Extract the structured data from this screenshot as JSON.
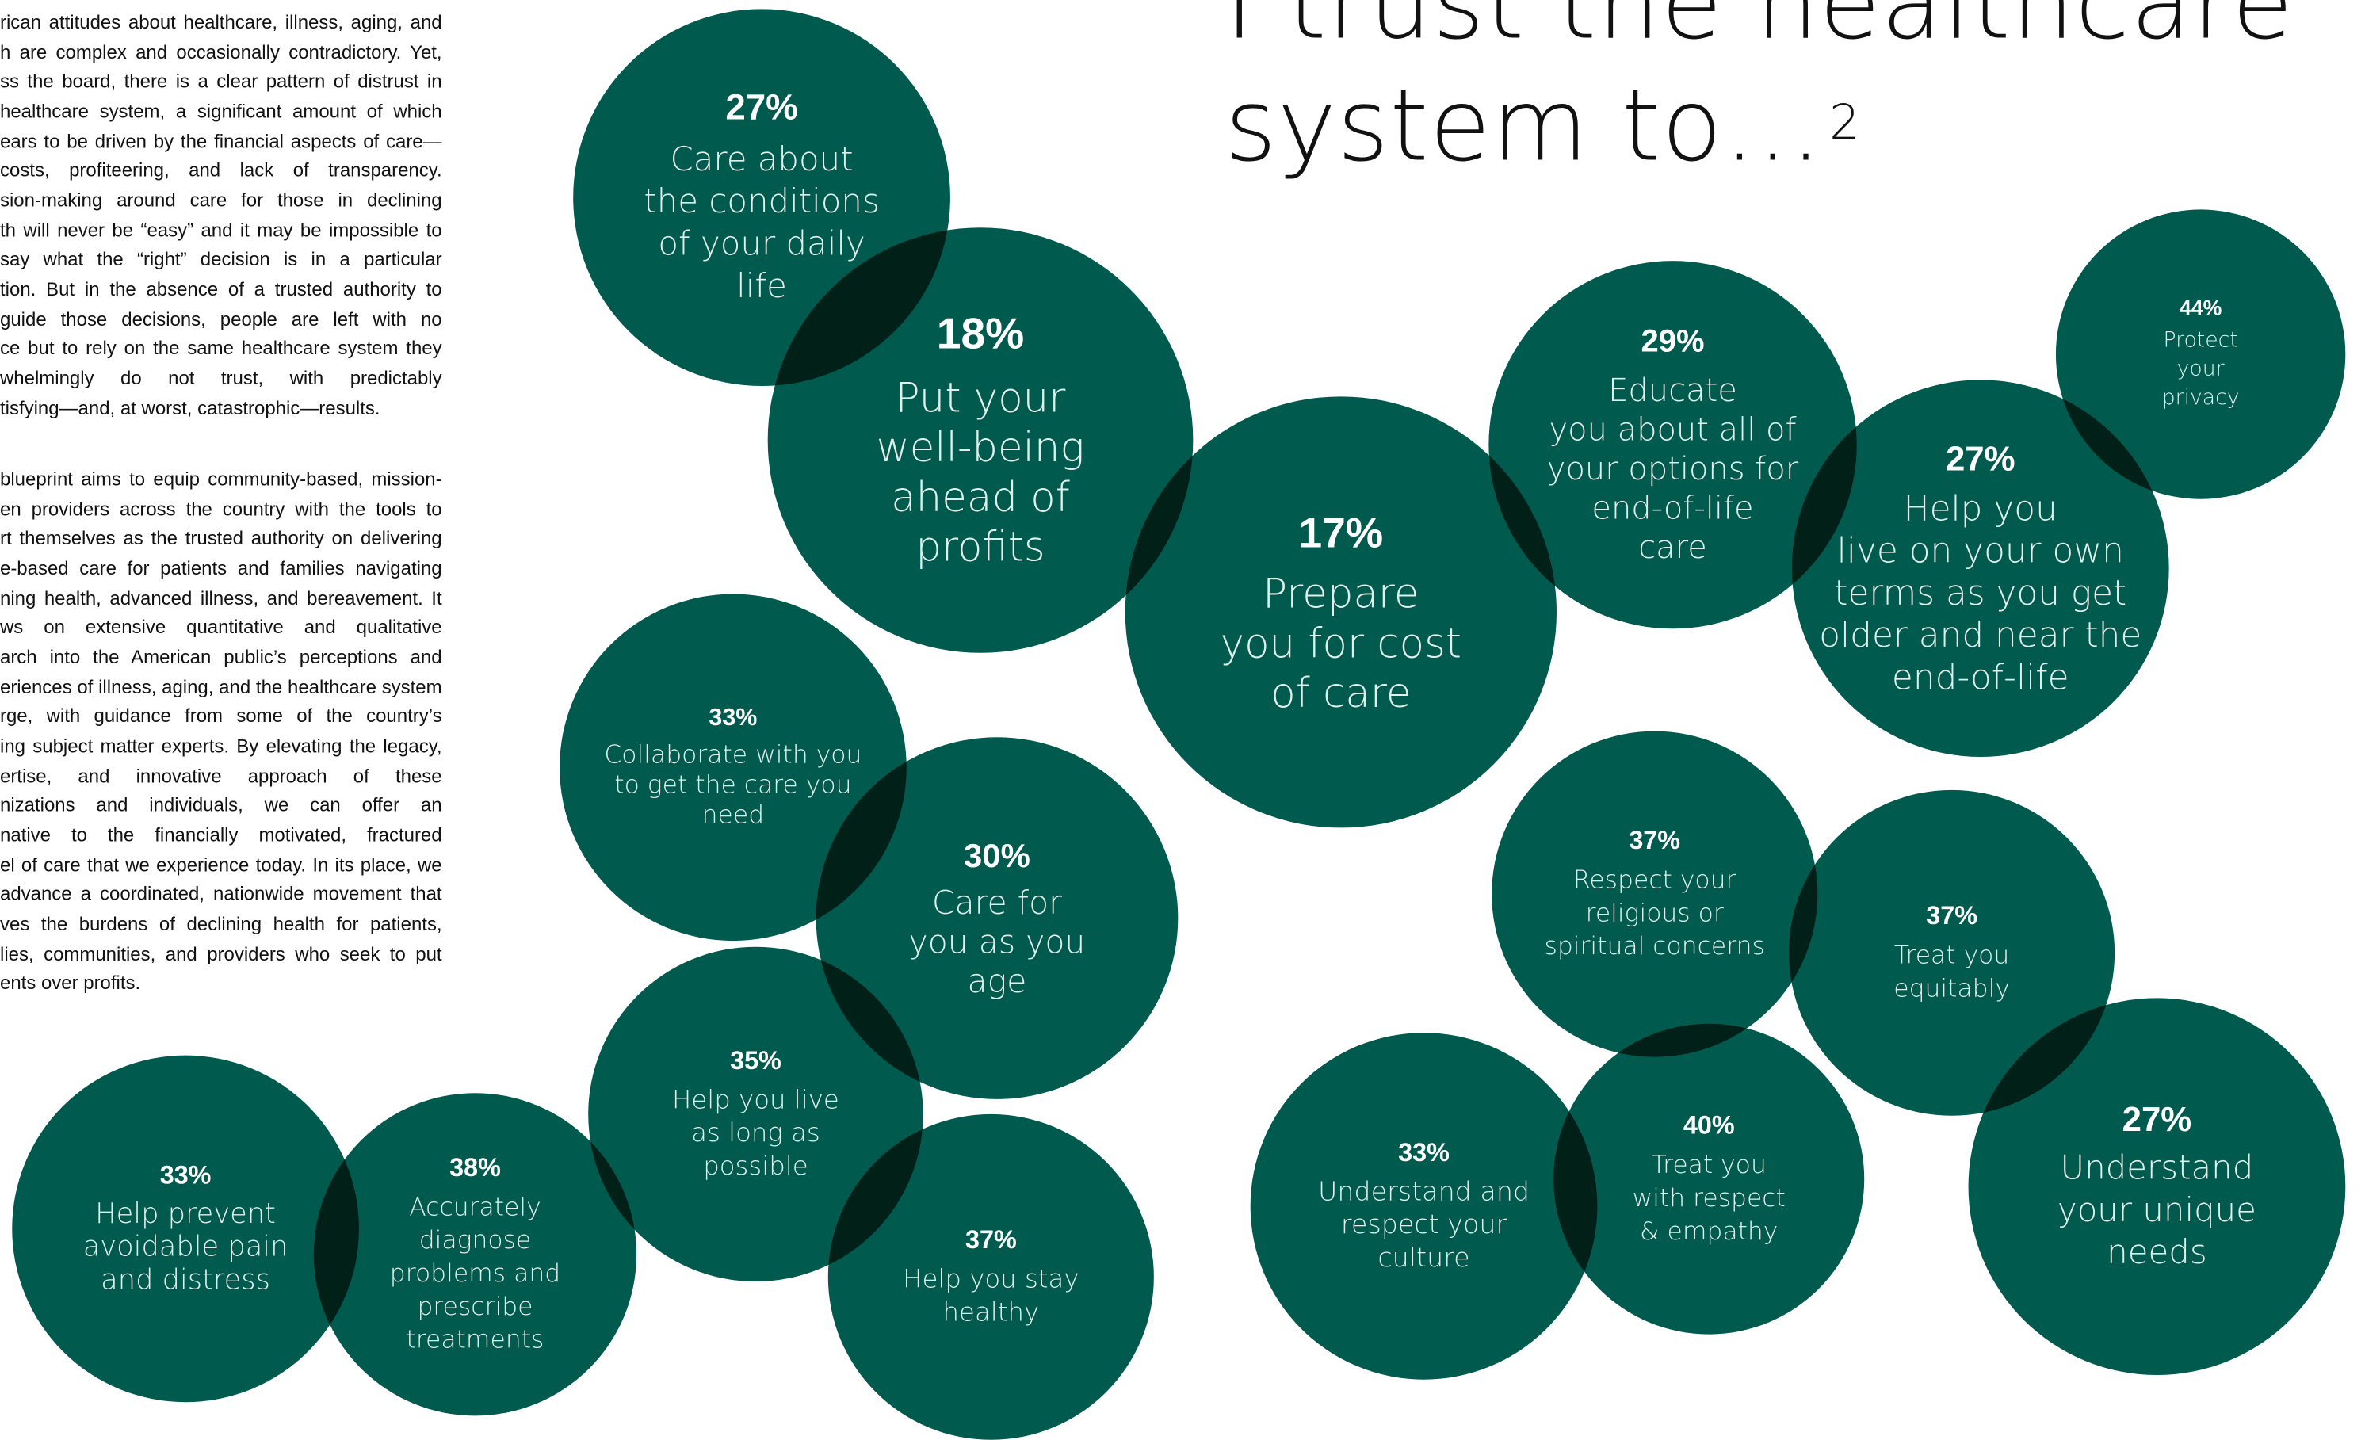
{
  "intro": {
    "paragraph1": [
      "rican attitudes about healthcare, illness, aging, and",
      "h are complex and occasionally contradictory. Yet,",
      "ss the board, there is a clear pattern of distrust in",
      "healthcare system, a significant amount of which",
      "ears to be driven by the financial aspects of care—",
      "costs, profiteering, and lack of transparency.",
      "sion-making around care for those in declining",
      "th will never be “easy” and it may be impossible to",
      "say what the “right” decision is in a particular",
      "tion. But in the absence of a trusted authority to",
      "guide those decisions, people are left with no",
      "ce but to rely on the same healthcare system they",
      "whelmingly do not trust, with predictably",
      "tisfying—and, at worst, catastrophic—results."
    ],
    "paragraph2": [
      "blueprint aims to equip community-based, mission-",
      "en providers across the country with the tools to",
      "rt themselves as the trusted authority on delivering",
      "e-based care for patients and families navigating",
      "ning health, advanced illness, and bereavement. It",
      "ws on extensive quantitative and qualitative",
      "arch into the American public’s perceptions and",
      "eriences of illness, aging, and the healthcare system",
      "rge, with guidance from some of the country’s",
      "ing subject matter experts. By elevating the legacy,",
      "ertise, and innovative approach of these",
      "nizations and individuals, we can offer an",
      "native to the financially motivated, fractured",
      "el of care that we experience today. In its place, we",
      "advance a coordinated, nationwide movement that",
      "ves the burdens of declining health for patients,",
      "lies, communities, and providers who seek to put",
      "ents over profits."
    ]
  },
  "headline": {
    "line1": "I trust the healthcare",
    "line2": "system to…",
    "footnote": "2"
  },
  "bubbles": [
    {
      "id": "conditions-daily-life",
      "percent": "27%",
      "label": [
        "Care about",
        "the conditions",
        "of your daily",
        "life"
      ]
    },
    {
      "id": "well-being-profits",
      "percent": "18%",
      "label": [
        "Put your",
        "well-being",
        "ahead of",
        "profits"
      ]
    },
    {
      "id": "prepare-cost",
      "percent": "17%",
      "label": [
        "Prepare",
        "you for cost",
        "of care"
      ]
    },
    {
      "id": "educate-options",
      "percent": "29%",
      "label": [
        "Educate",
        "you about all of",
        "your options for",
        "end-of-life",
        "care"
      ]
    },
    {
      "id": "protect-privacy",
      "percent": "44%",
      "label": [
        "Protect",
        "your",
        "privacy"
      ]
    },
    {
      "id": "live-own-terms",
      "percent": "27%",
      "label": [
        "Help you",
        "live on your own",
        "terms as you get",
        "older and near the",
        "end-of-life"
      ]
    },
    {
      "id": "collaborate-care",
      "percent": "33%",
      "label": [
        "Collaborate with you",
        "to get the care you",
        "need"
      ]
    },
    {
      "id": "care-as-you-age",
      "percent": "30%",
      "label": [
        "Care for",
        "you as you",
        "age"
      ]
    },
    {
      "id": "live-long",
      "percent": "35%",
      "label": [
        "Help you live",
        "as long as",
        "possible"
      ]
    },
    {
      "id": "stay-healthy",
      "percent": "37%",
      "label": [
        "Help you stay",
        "healthy"
      ]
    },
    {
      "id": "prevent-pain",
      "percent": "33%",
      "label": [
        "Help prevent",
        "avoidable pain",
        "and distress"
      ]
    },
    {
      "id": "diagnose-prescribe",
      "percent": "38%",
      "label": [
        "Accurately",
        "diagnose",
        "problems and",
        "prescribe",
        "treatments"
      ]
    },
    {
      "id": "religious-concerns",
      "percent": "37%",
      "label": [
        "Respect your",
        "religious or",
        "spiritual concerns"
      ]
    },
    {
      "id": "treat-equitably",
      "percent": "37%",
      "label": [
        "Treat you",
        "equitably"
      ]
    },
    {
      "id": "respect-culture",
      "percent": "33%",
      "label": [
        "Understand and",
        "respect your",
        "culture"
      ]
    },
    {
      "id": "respect-empathy",
      "percent": "40%",
      "label": [
        "Treat you",
        "with respect",
        "& empathy"
      ]
    },
    {
      "id": "unique-needs",
      "percent": "27%",
      "label": [
        "Understand",
        "your unique",
        "needs"
      ]
    }
  ]
}
